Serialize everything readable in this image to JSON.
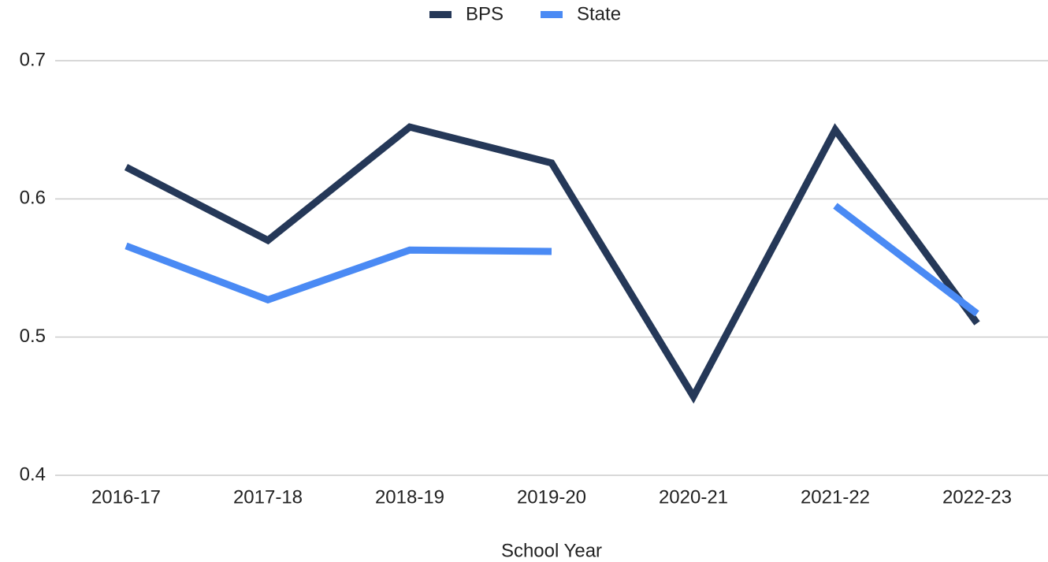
{
  "chart_data": {
    "type": "line",
    "x_label": "School Year",
    "categories": [
      "2016-17",
      "2017-18",
      "2018-19",
      "2019-20",
      "2020-21",
      "2021-22",
      "2022-23"
    ],
    "series": [
      {
        "name": "BPS",
        "color": "#253858",
        "values": [
          0.623,
          0.57,
          0.652,
          0.626,
          0.457,
          0.65,
          0.51
        ]
      },
      {
        "name": "State",
        "color": "#4a8af4",
        "values": [
          0.566,
          0.527,
          0.563,
          0.562,
          null,
          0.595,
          0.517
        ]
      }
    ],
    "ylim": [
      0.4,
      0.7
    ],
    "yticks": [
      0.4,
      0.5,
      0.6,
      0.7
    ],
    "grid": true,
    "legend": "top"
  }
}
